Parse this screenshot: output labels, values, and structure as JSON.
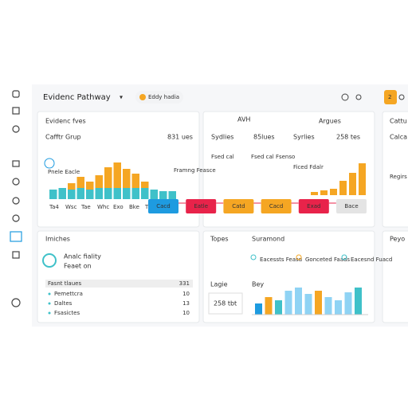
{
  "header": {
    "title": "Evidenc Pathway",
    "pill": "Eddy hadia",
    "button": "2"
  },
  "evidence": {
    "title": "Evidenc fves",
    "subtitle": "Cafftr Grup",
    "count": "831 ues",
    "note": "Pnele Eacle",
    "base": [
      12,
      14,
      12,
      14,
      12,
      14,
      14,
      14,
      14,
      14,
      14,
      12,
      10,
      10
    ],
    "top": [
      0,
      0,
      8,
      14,
      10,
      16,
      26,
      32,
      24,
      18,
      8,
      0,
      0,
      0
    ],
    "base_color": "#3fc1c9",
    "top_color": "#f5a623",
    "bar_labels": [
      "Ta4",
      "Wsc",
      "Tae",
      "Whc",
      "Exo",
      "Bke",
      "Tles",
      "Elbe"
    ]
  },
  "pathway": {
    "heading1": "AVH",
    "heading2": "Argues",
    "col1": "Sydlies",
    "col1_value": "85lues",
    "col2": "Syrlies",
    "col2_value": "258 tes",
    "notes": [
      "Framng Feasce",
      "Fsed cal",
      "Fsed cal Fsenso",
      "Ficed Fdalr"
    ],
    "boxes": [
      {
        "label": "Cacd",
        "color": "#1e9be0"
      },
      {
        "label": "Eatle",
        "color": "#e8234a"
      },
      {
        "label": "Catd",
        "color": "#f5a623"
      },
      {
        "label": "Cacd",
        "color": "#f5a623"
      },
      {
        "label": "Exad",
        "color": "#e8234a"
      },
      {
        "label": "Bace",
        "color": "#e4e4e4"
      }
    ],
    "bars": [
      4,
      6,
      8,
      18,
      28,
      40
    ],
    "bar_color": "#f5a623"
  },
  "insights": {
    "title": "Imiches",
    "line1": "Analc fiality",
    "line2": "Feaet on",
    "table_header": [
      "Fasnt tlaues",
      "331"
    ],
    "rows": [
      [
        "Pemettcra",
        "10"
      ],
      [
        "Daltes",
        "13"
      ],
      [
        "Fsasictes",
        "10"
      ]
    ]
  },
  "topics": {
    "title": "Topes",
    "subtitle": "Suramond",
    "items": [
      "Eacessts Feasd",
      "Gonceted Faads",
      "Eacesnd Fuacd"
    ],
    "label1": "Lagie",
    "label2": "Bey",
    "stat": "258 tbt",
    "bars": [
      14,
      22,
      18,
      30,
      34,
      26,
      30,
      22,
      18,
      28,
      34
    ],
    "colors": [
      "#1e9be0",
      "#f5a623",
      "#3fc1c9",
      "#8fd3f4",
      "#8fd3f4",
      "#8fd3f4",
      "#f5a623",
      "#8fd3f4",
      "#8fd3f4",
      "#8fd3f4",
      "#3fc1c9"
    ]
  },
  "right": {
    "title": "Cattu",
    "subtitle": "Calca",
    "label": "Regirs",
    "bottom": "Peyo"
  }
}
